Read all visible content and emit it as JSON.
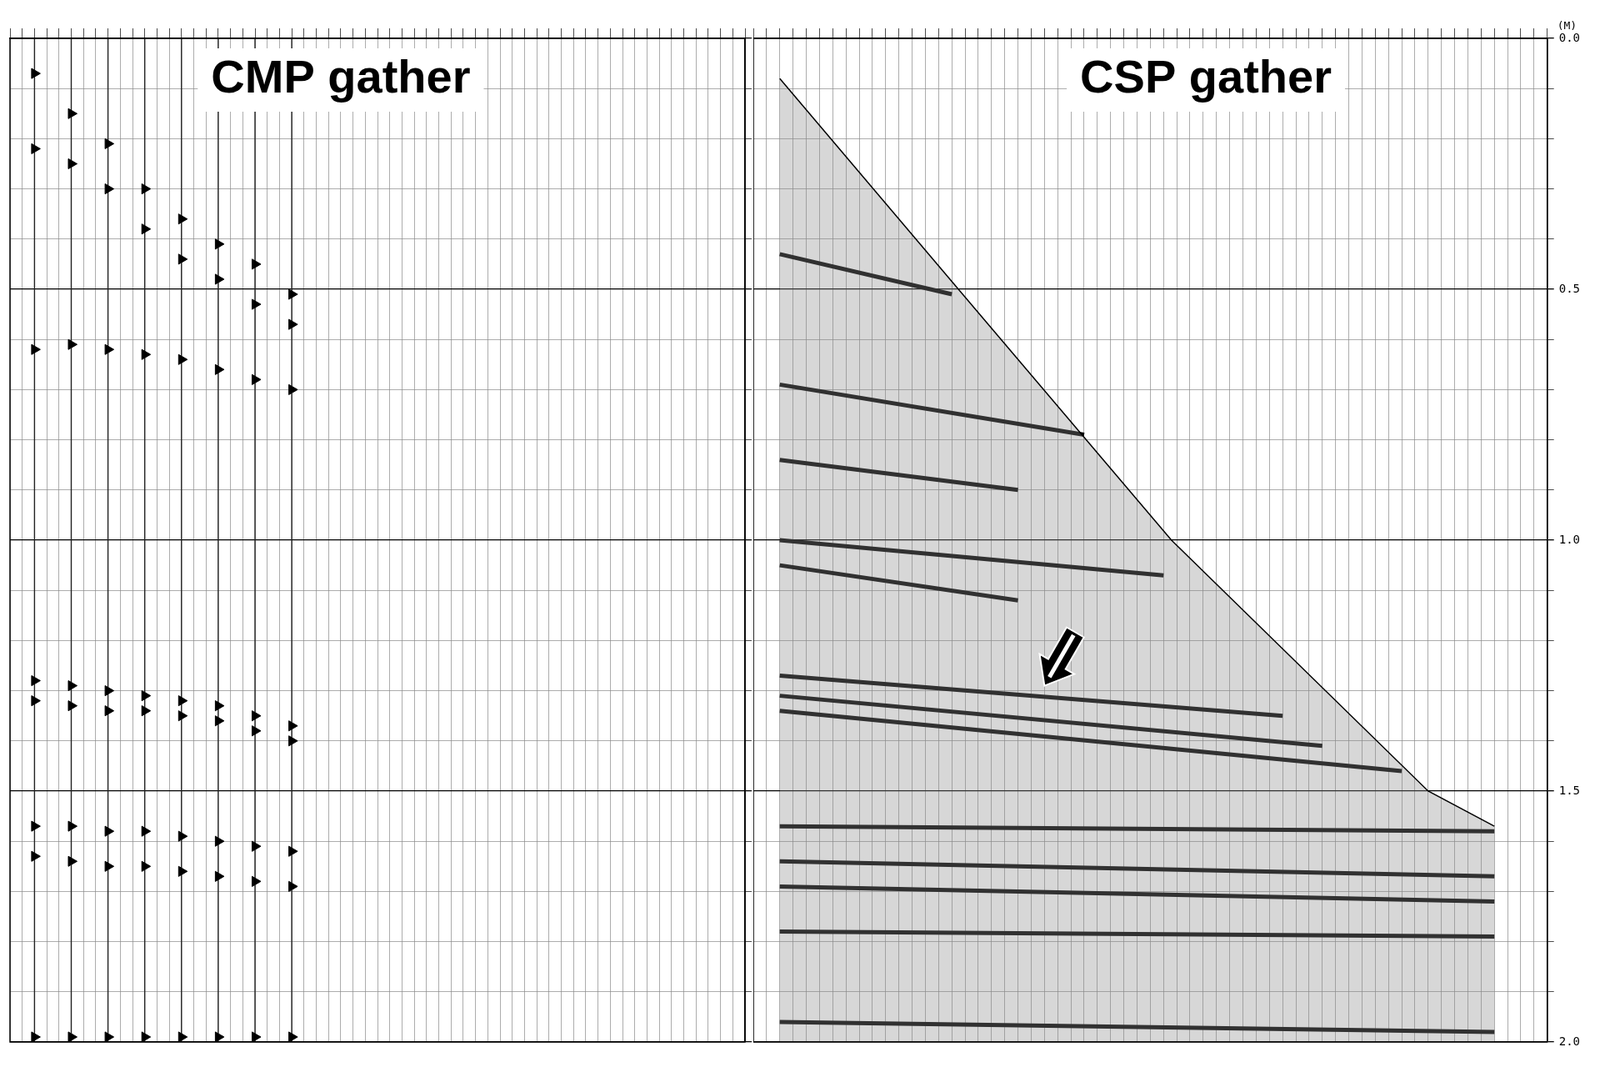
{
  "chart_data": [
    {
      "type": "wiggle",
      "title": "CMP gather",
      "xlim": [
        0,
        60
      ],
      "xticks": [
        0,
        1,
        2,
        3,
        4,
        5,
        6,
        7,
        8,
        9,
        10,
        11,
        12,
        13,
        14,
        15,
        16,
        17,
        18,
        19,
        20,
        21,
        22,
        23,
        24,
        25,
        26,
        27,
        28,
        29,
        30,
        31,
        32,
        33,
        34,
        35,
        36,
        37,
        38,
        39,
        40,
        41,
        42,
        43,
        44,
        45,
        46,
        47,
        48,
        49,
        50,
        51,
        52,
        53,
        54,
        55,
        56,
        57,
        58,
        59,
        60
      ],
      "ylim": [
        0,
        2
      ],
      "yticks": [
        0,
        0.5,
        1,
        1.5,
        2
      ],
      "ygrid": [
        0,
        0.1,
        0.2,
        0.3,
        0.4,
        0.5,
        0.6,
        0.7,
        0.8,
        0.9,
        1,
        1.1,
        1.2,
        1.3,
        1.4,
        1.5,
        1.6,
        1.7,
        1.8,
        1.9,
        2
      ],
      "grid": true,
      "tick_labels": false,
      "marker": "triangle",
      "color": "#000000",
      "traces": [
        2,
        5,
        8,
        11,
        14,
        17,
        20,
        23
      ],
      "series": [
        {
          "values": [
            0.07,
            0.15,
            0.21,
            0.3,
            0.36,
            0.41,
            0.45,
            0.51
          ]
        },
        {
          "values": [
            0.22,
            0.25,
            0.3,
            0.38,
            0.44,
            0.48,
            0.53,
            0.57
          ]
        },
        {
          "values": [
            0.62,
            0.61,
            0.62,
            0.63,
            0.64,
            0.66,
            0.68,
            0.7
          ]
        },
        {
          "values": [
            1.28,
            1.29,
            1.3,
            1.31,
            1.32,
            1.33,
            1.35,
            1.37
          ]
        },
        {
          "values": [
            1.32,
            1.33,
            1.34,
            1.34,
            1.35,
            1.36,
            1.38,
            1.4
          ]
        },
        {
          "values": [
            1.57,
            1.57,
            1.58,
            1.58,
            1.59,
            1.6,
            1.61,
            1.62
          ]
        },
        {
          "values": [
            1.63,
            1.64,
            1.65,
            1.65,
            1.66,
            1.67,
            1.68,
            1.69
          ]
        },
        {
          "values": [
            1.99,
            1.99,
            1.99,
            1.99,
            1.99,
            1.99,
            1.99,
            1.99
          ]
        }
      ]
    },
    {
      "type": "wiggle",
      "title": "CSP gather",
      "y_label": "(M)",
      "xlim": [
        0,
        60
      ],
      "xticks": [
        0,
        1,
        2,
        3,
        4,
        5,
        6,
        7,
        8,
        9,
        10,
        11,
        12,
        13,
        14,
        15,
        16,
        17,
        18,
        19,
        20,
        21,
        22,
        23,
        24,
        25,
        26,
        27,
        28,
        29,
        30,
        31,
        32,
        33,
        34,
        35,
        36,
        37,
        38,
        39,
        40,
        41,
        42,
        43,
        44,
        45,
        46,
        47,
        48,
        49,
        50,
        51,
        52,
        53,
        54,
        55,
        56,
        57,
        58,
        59,
        60
      ],
      "ylim": [
        0,
        2
      ],
      "yticks": [
        {
          "value": 0,
          "label": "0.0"
        },
        0.5,
        {
          "value": 1,
          "label": "1.0"
        },
        1.5,
        {
          "value": 2,
          "label": "2.0"
        }
      ],
      "ygrid": [
        0,
        0.1,
        0.2,
        0.3,
        0.4,
        0.5,
        0.6,
        0.7,
        0.8,
        0.9,
        1,
        1.1,
        1.2,
        1.3,
        1.4,
        1.5,
        1.6,
        1.7,
        1.8,
        1.9,
        2
      ],
      "grid": true,
      "tick_labels": "y",
      "color": "#000000",
      "first_break": {
        "x": [
          2,
          15.5,
          31.6,
          51,
          56
        ],
        "values": [
          0.08,
          0.5,
          1.0,
          1.5,
          1.57
        ]
      },
      "series": [
        {
          "x": [
            2,
            15
          ],
          "values": [
            0.43,
            0.51
          ]
        },
        {
          "x": [
            2,
            25
          ],
          "values": [
            0.69,
            0.79
          ]
        },
        {
          "x": [
            2,
            20
          ],
          "values": [
            0.84,
            0.9
          ]
        },
        {
          "x": [
            2,
            31
          ],
          "values": [
            1.0,
            1.07
          ]
        },
        {
          "x": [
            2,
            20
          ],
          "values": [
            1.05,
            1.12
          ]
        },
        {
          "x": [
            2,
            40
          ],
          "values": [
            1.27,
            1.35
          ]
        },
        {
          "x": [
            2,
            43
          ],
          "values": [
            1.31,
            1.41
          ]
        },
        {
          "x": [
            2,
            49
          ],
          "values": [
            1.34,
            1.46
          ]
        },
        {
          "x": [
            2,
            56
          ],
          "values": [
            1.57,
            1.58
          ]
        },
        {
          "x": [
            2,
            56
          ],
          "values": [
            1.64,
            1.67
          ]
        },
        {
          "x": [
            2,
            56
          ],
          "values": [
            1.69,
            1.72
          ]
        },
        {
          "x": [
            2,
            56
          ],
          "values": [
            1.78,
            1.79
          ]
        },
        {
          "x": [
            2,
            56
          ],
          "values": [
            1.96,
            1.98
          ]
        }
      ],
      "arrow_at": {
        "x": 22,
        "y": 1.29
      }
    }
  ]
}
